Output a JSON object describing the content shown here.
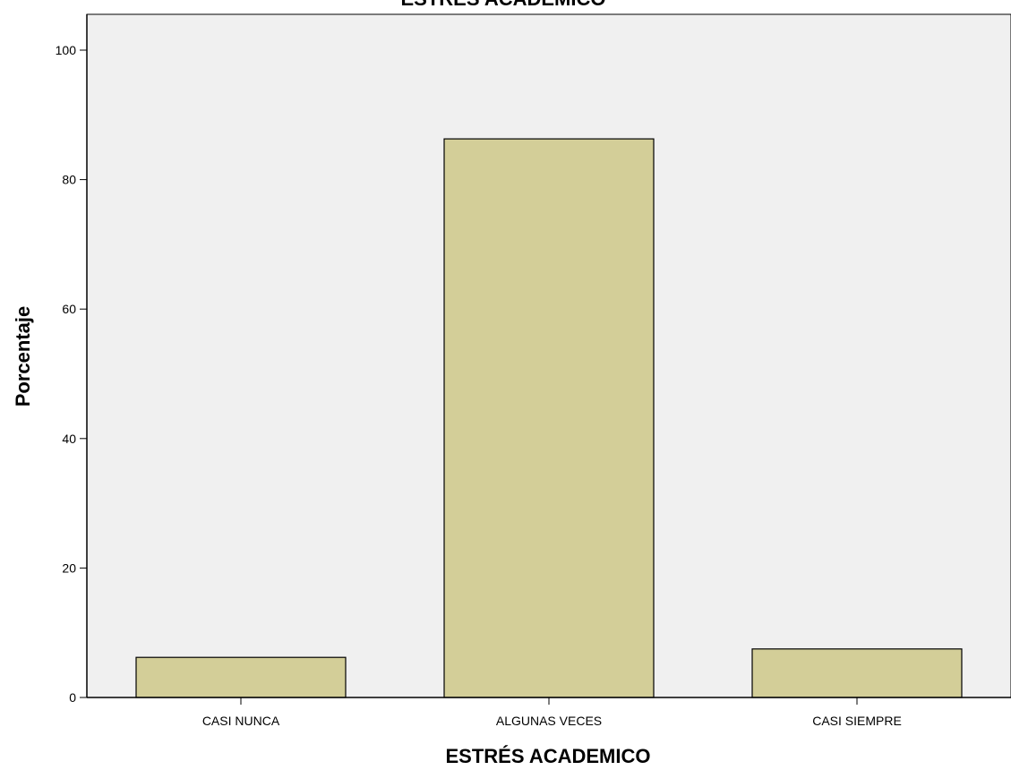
{
  "chart_data": {
    "type": "bar",
    "title": "ESTRÉS ACADEMICO",
    "xlabel": "ESTRÉS ACADEMICO",
    "ylabel": "Porcentaje",
    "categories": [
      "CASI NUNCA",
      "ALGUNAS VECES",
      "CASI SIEMPRE"
    ],
    "values": [
      6.2,
      86.3,
      7.5
    ],
    "ylim": [
      0,
      100
    ],
    "yticks": [
      "0",
      "20",
      "40",
      "60",
      "80",
      "100"
    ],
    "grid": false,
    "legend": "none",
    "colors": {
      "bar_fill": "#d3ce98",
      "bar_stroke": "#000000",
      "plot_background": "#f0f0f0",
      "page_background": "#ffffff"
    }
  }
}
